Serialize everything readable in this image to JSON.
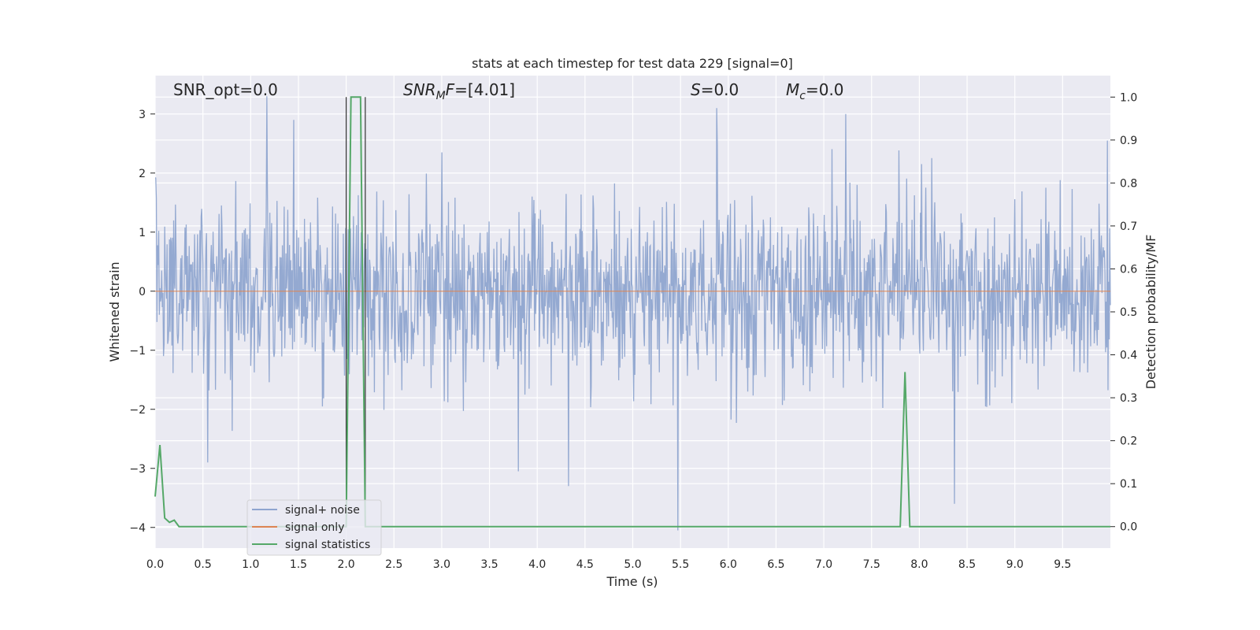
{
  "chart_data": {
    "type": "line",
    "title": "stats at each timestep for test data 229 [signal=0]",
    "xlabel": "Time (s)",
    "ylabel_left": "Whitened strain",
    "ylabel_right": "Detection probability/MF",
    "xlim": [
      0.0,
      10.0
    ],
    "ylim_left": [
      -4.35,
      3.65
    ],
    "ylim_right": [
      -0.05,
      1.05
    ],
    "x_ticks": [
      "0.0",
      "0.5",
      "1.0",
      "1.5",
      "2.0",
      "2.5",
      "3.0",
      "3.5",
      "4.0",
      "4.5",
      "5.0",
      "5.5",
      "6.0",
      "6.5",
      "7.0",
      "7.5",
      "8.0",
      "8.5",
      "9.0",
      "9.5"
    ],
    "y_ticks_left": [
      "3",
      "2",
      "1",
      "0",
      "−1",
      "−2",
      "−3",
      "−4"
    ],
    "y_ticks_right": [
      "1.0",
      "0.9",
      "0.8",
      "0.7",
      "0.6",
      "0.5",
      "0.4",
      "0.3",
      "0.2",
      "0.1",
      "0.0"
    ],
    "grid": true,
    "legend_position": "lower-left",
    "annotations": {
      "snr_opt": "SNR_opt=0.0",
      "snr_mf": "=[4.01]",
      "s": "=0.0",
      "mc": "=0.0"
    },
    "series": [
      {
        "name": "signal+ noise",
        "color": "#8fa5cf",
        "description": "whitened noise, |strain| mostly < 2.5; prominent spikes listed",
        "spikes": [
          {
            "x": 1.17,
            "y": 3.3
          },
          {
            "x": 1.45,
            "y": 2.9
          },
          {
            "x": 5.47,
            "y": -4.05
          },
          {
            "x": 5.88,
            "y": 3.1
          },
          {
            "x": 7.23,
            "y": 3.0
          },
          {
            "x": 4.33,
            "y": -3.3
          },
          {
            "x": 8.37,
            "y": -3.6
          },
          {
            "x": 9.97,
            "y": 2.55
          },
          {
            "x": 0.55,
            "y": -2.9
          },
          {
            "x": 3.8,
            "y": -3.05
          }
        ]
      },
      {
        "name": "signal only",
        "color": "#dd8452",
        "x": [
          0.0,
          10.0
        ],
        "y": [
          0.0,
          0.0
        ]
      },
      {
        "name": "signal statistics",
        "color": "#55a868",
        "axis": "right",
        "x": [
          0.0,
          0.05,
          0.1,
          0.15,
          0.2,
          0.25,
          0.3,
          1.95,
          2.0,
          2.05,
          2.15,
          2.2,
          2.25,
          7.8,
          7.85,
          7.9,
          7.95,
          10.0
        ],
        "y": [
          0.07,
          0.19,
          0.02,
          0.01,
          0.015,
          0.0,
          0.0,
          0.0,
          0.0,
          1.0,
          1.0,
          0.0,
          0.0,
          0.0,
          0.36,
          0.0,
          0.0,
          0.0
        ]
      }
    ],
    "vertical_lines": [
      2.0,
      2.2
    ]
  }
}
